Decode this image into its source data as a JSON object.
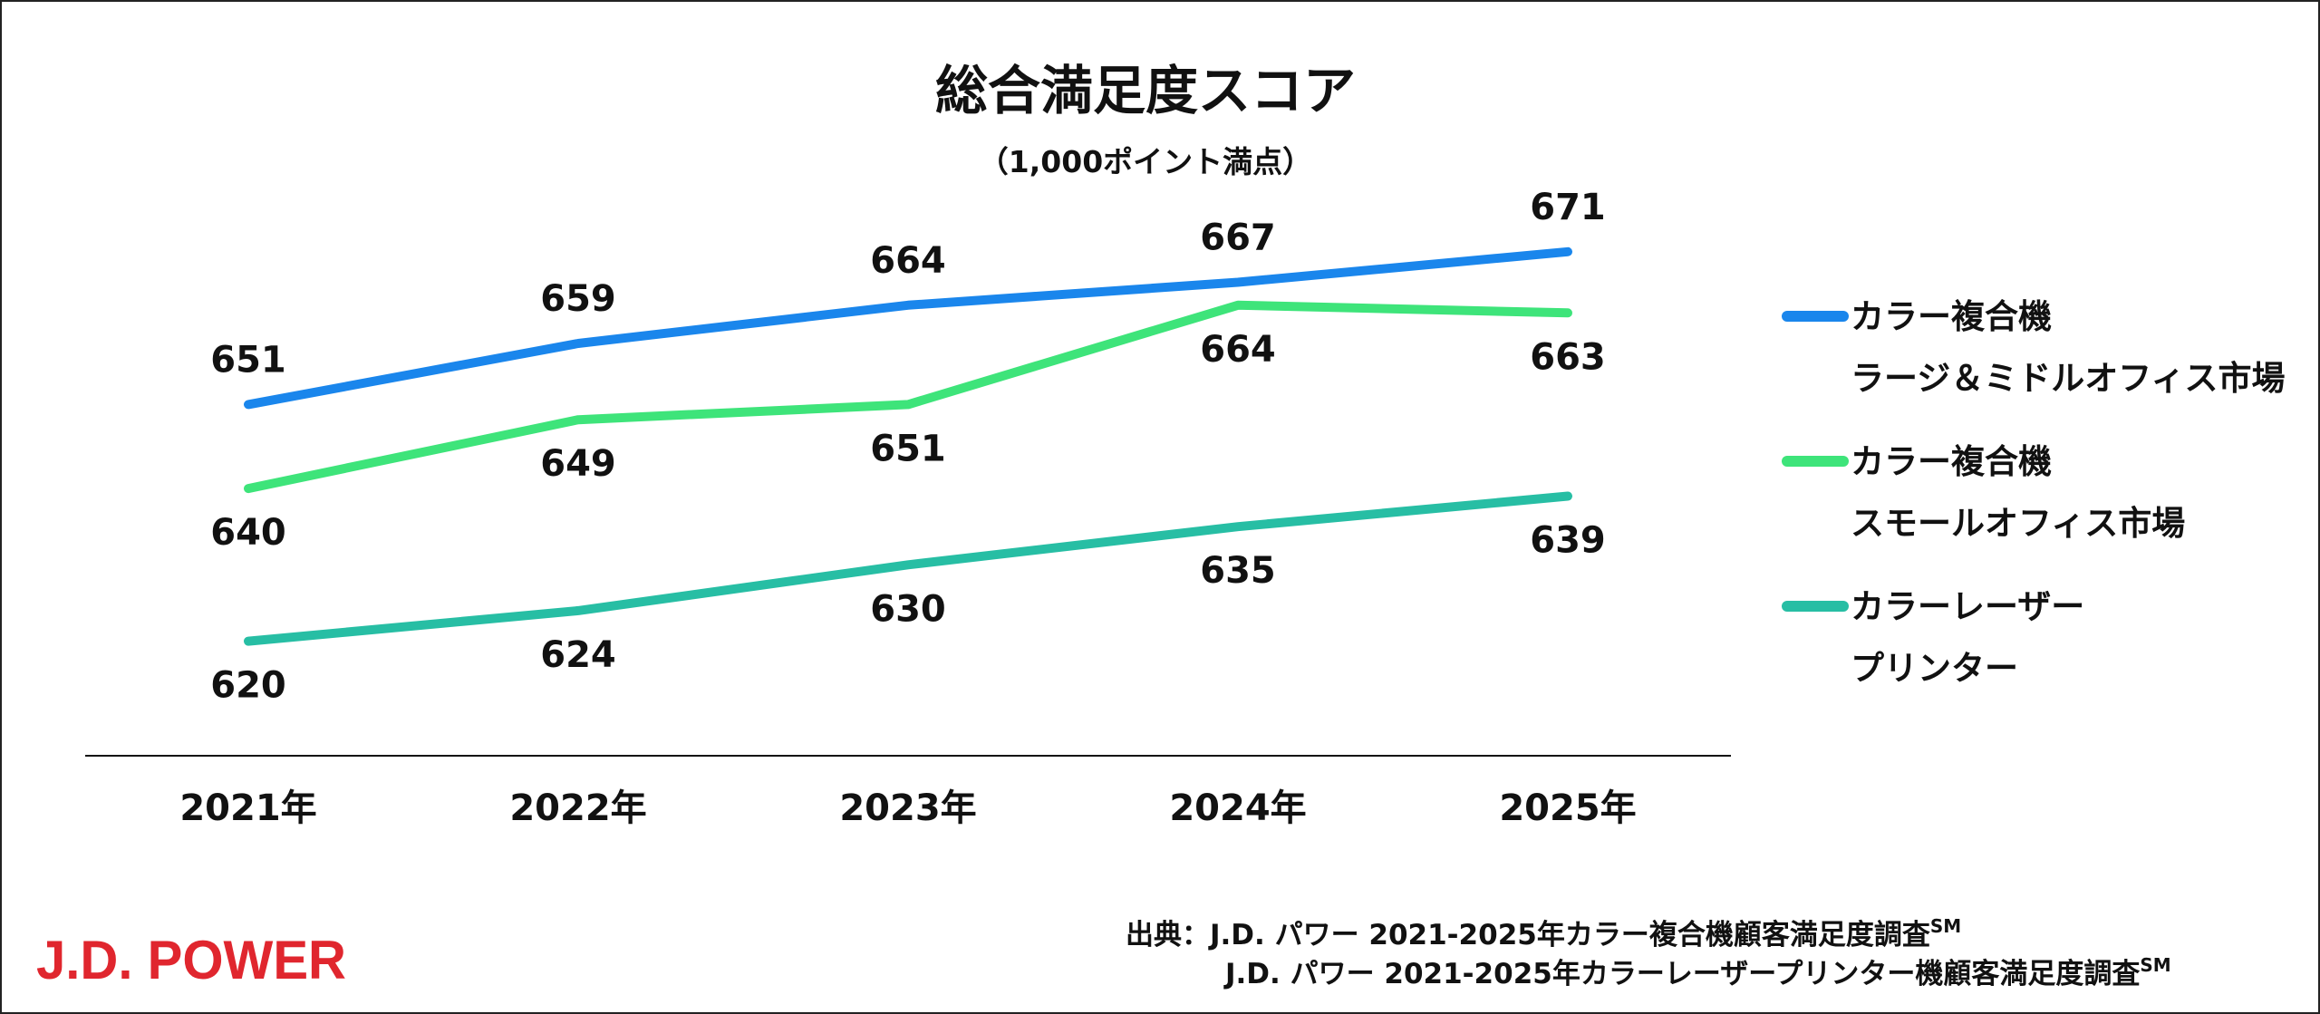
{
  "chart_data": {
    "type": "line",
    "title": "総合満足度スコア",
    "subtitle": "（1,000ポイント満点）",
    "categories": [
      "2021年",
      "2022年",
      "2023年",
      "2024年",
      "2025年"
    ],
    "ylim": [
      605,
      680
    ],
    "grid": false,
    "legend_position": "right",
    "series": [
      {
        "name_lines": [
          "カラー複合機",
          "ラージ＆ミドルオフィス市場"
        ],
        "color": "#1a86ec",
        "values": [
          651,
          659,
          664,
          667,
          671
        ],
        "label_positions": [
          "above",
          "above",
          "above",
          "above",
          "above"
        ]
      },
      {
        "name_lines": [
          "カラー複合機",
          "スモールオフィス市場"
        ],
        "color": "#3ee47a",
        "values": [
          640,
          649,
          651,
          664,
          663
        ],
        "label_positions": [
          "below",
          "below",
          "below",
          "below",
          "below"
        ]
      },
      {
        "name_lines": [
          "カラーレーザー",
          "プリンター"
        ],
        "color": "#27bea4",
        "values": [
          620,
          624,
          630,
          635,
          639
        ],
        "label_positions": [
          "below",
          "below",
          "below",
          "below",
          "below"
        ]
      }
    ]
  },
  "source": {
    "line1_prefix": "出典：",
    "line1": "J.D. パワー 2021-2025年カラー複合機顧客満足度調査",
    "line2": "J.D. パワー 2021-2025年カラーレーザープリンター機顧客満足度調査",
    "superscript": "SM"
  },
  "logo": {
    "text": "J.D. POWER",
    "color": "#e0262e"
  }
}
